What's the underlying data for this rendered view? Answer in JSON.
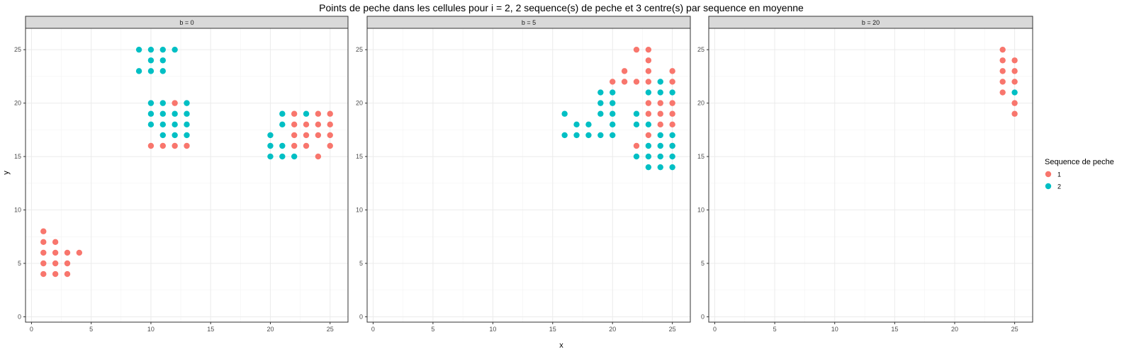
{
  "chart_data": {
    "type": "scatter",
    "title": "Points de peche dans les cellules pour i = 2, 2 sequence(s) de peche et 3 centre(s) par sequence en moyenne",
    "xlabel": "x",
    "ylabel": "y",
    "xlim": [
      -0.5,
      26.5
    ],
    "ylim": [
      -0.5,
      27
    ],
    "x_ticks": [
      0,
      5,
      10,
      15,
      20,
      25
    ],
    "y_ticks": [
      0,
      5,
      10,
      15,
      20,
      25
    ],
    "grid": true,
    "legend": {
      "title": "Sequence de peche",
      "position": "right",
      "entries": [
        {
          "label": "1",
          "color": "#F8766D"
        },
        {
          "label": "2",
          "color": "#00BFC4"
        }
      ]
    },
    "panels": [
      {
        "strip": "b = 0",
        "series": [
          {
            "name": "1",
            "color": "#F8766D",
            "points": [
              [
                1,
                4
              ],
              [
                1,
                5
              ],
              [
                1,
                6
              ],
              [
                1,
                7
              ],
              [
                1,
                8
              ],
              [
                2,
                4
              ],
              [
                2,
                5
              ],
              [
                2,
                6
              ],
              [
                2,
                7
              ],
              [
                3,
                4
              ],
              [
                3,
                5
              ],
              [
                3,
                6
              ],
              [
                4,
                6
              ],
              [
                10,
                16
              ],
              [
                11,
                16
              ],
              [
                12,
                16
              ],
              [
                13,
                16
              ],
              [
                12,
                20
              ],
              [
                22,
                16
              ],
              [
                22,
                17
              ],
              [
                22,
                18
              ],
              [
                22,
                19
              ],
              [
                23,
                16
              ],
              [
                23,
                17
              ],
              [
                23,
                18
              ],
              [
                24,
                15
              ],
              [
                24,
                17
              ],
              [
                24,
                18
              ],
              [
                24,
                19
              ],
              [
                25,
                16
              ],
              [
                25,
                17
              ],
              [
                25,
                18
              ],
              [
                25,
                19
              ]
            ]
          },
          {
            "name": "2",
            "color": "#00BFC4",
            "points": [
              [
                9,
                23
              ],
              [
                9,
                25
              ],
              [
                10,
                23
              ],
              [
                10,
                24
              ],
              [
                10,
                25
              ],
              [
                10,
                18
              ],
              [
                10,
                19
              ],
              [
                10,
                20
              ],
              [
                11,
                23
              ],
              [
                11,
                24
              ],
              [
                11,
                25
              ],
              [
                11,
                17
              ],
              [
                11,
                18
              ],
              [
                11,
                19
              ],
              [
                11,
                20
              ],
              [
                12,
                25
              ],
              [
                12,
                17
              ],
              [
                12,
                18
              ],
              [
                12,
                19
              ],
              [
                13,
                17
              ],
              [
                13,
                18
              ],
              [
                13,
                19
              ],
              [
                13,
                20
              ],
              [
                20,
                15
              ],
              [
                20,
                16
              ],
              [
                20,
                17
              ],
              [
                21,
                15
              ],
              [
                21,
                16
              ],
              [
                21,
                18
              ],
              [
                21,
                19
              ],
              [
                22,
                15
              ],
              [
                23,
                19
              ]
            ]
          }
        ]
      },
      {
        "strip": "b = 5",
        "series": [
          {
            "name": "1",
            "color": "#F8766D",
            "points": [
              [
                20,
                22
              ],
              [
                21,
                22
              ],
              [
                21,
                23
              ],
              [
                22,
                16
              ],
              [
                22,
                22
              ],
              [
                22,
                25
              ],
              [
                23,
                17
              ],
              [
                23,
                19
              ],
              [
                23,
                20
              ],
              [
                23,
                22
              ],
              [
                23,
                23
              ],
              [
                23,
                24
              ],
              [
                23,
                25
              ],
              [
                24,
                18
              ],
              [
                24,
                19
              ],
              [
                24,
                20
              ],
              [
                25,
                16
              ],
              [
                25,
                18
              ],
              [
                25,
                19
              ],
              [
                25,
                20
              ],
              [
                25,
                22
              ],
              [
                25,
                23
              ]
            ]
          },
          {
            "name": "2",
            "color": "#00BFC4",
            "points": [
              [
                16,
                17
              ],
              [
                16,
                19
              ],
              [
                17,
                17
              ],
              [
                17,
                18
              ],
              [
                18,
                17
              ],
              [
                18,
                18
              ],
              [
                19,
                17
              ],
              [
                19,
                19
              ],
              [
                19,
                20
              ],
              [
                19,
                21
              ],
              [
                20,
                17
              ],
              [
                20,
                18
              ],
              [
                20,
                19
              ],
              [
                20,
                20
              ],
              [
                20,
                21
              ],
              [
                22,
                15
              ],
              [
                22,
                18
              ],
              [
                22,
                19
              ],
              [
                23,
                14
              ],
              [
                23,
                15
              ],
              [
                23,
                16
              ],
              [
                23,
                18
              ],
              [
                23,
                21
              ],
              [
                24,
                14
              ],
              [
                24,
                15
              ],
              [
                24,
                16
              ],
              [
                24,
                17
              ],
              [
                24,
                21
              ],
              [
                24,
                22
              ],
              [
                25,
                14
              ],
              [
                25,
                15
              ],
              [
                25,
                16
              ],
              [
                25,
                17
              ],
              [
                25,
                21
              ]
            ]
          }
        ]
      },
      {
        "strip": "b = 20",
        "series": [
          {
            "name": "1",
            "color": "#F8766D",
            "points": [
              [
                24,
                21
              ],
              [
                24,
                22
              ],
              [
                24,
                23
              ],
              [
                24,
                24
              ],
              [
                24,
                25
              ],
              [
                25,
                19
              ],
              [
                25,
                20
              ],
              [
                25,
                22
              ],
              [
                25,
                23
              ],
              [
                25,
                24
              ]
            ]
          },
          {
            "name": "2",
            "color": "#00BFC4",
            "points": [
              [
                25,
                21
              ]
            ]
          }
        ]
      }
    ]
  }
}
